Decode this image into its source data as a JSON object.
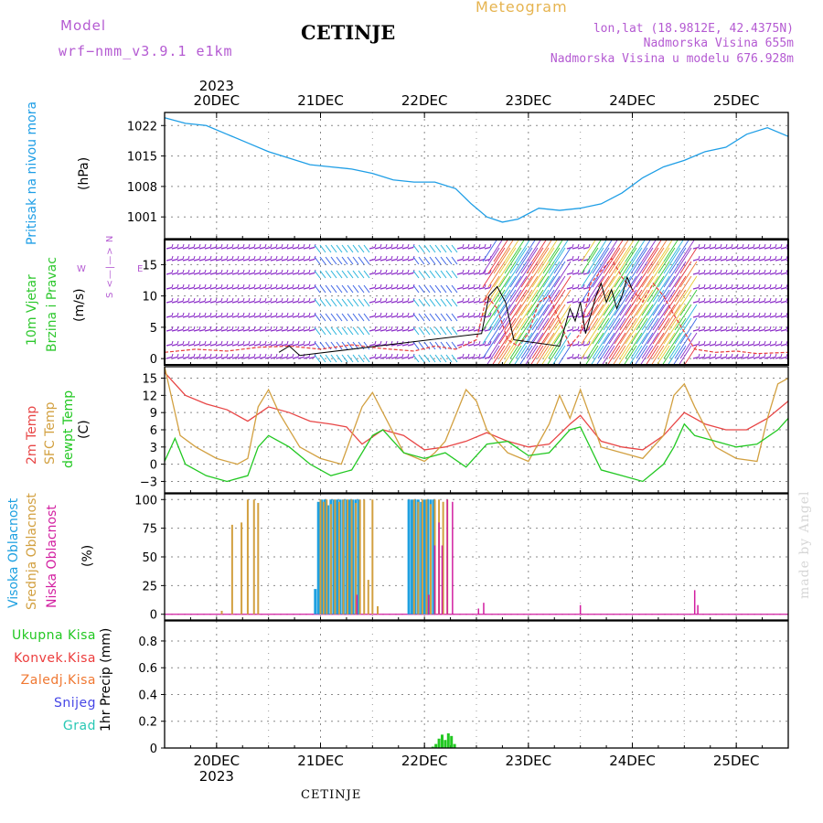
{
  "header": {
    "model_label": "Model",
    "model_name": "wrf−nmm_v3.9.1  e1km",
    "station_title": "CETINJE",
    "meteogram_label": "Meteogram",
    "lonlat": "lon,lat (18.9812E, 42.4375N)",
    "altitude": "Nadmorska Visina 655m",
    "model_altitude": "Nadmorska Visina u modelu 676.928m"
  },
  "footer": {
    "station": "CETINJE",
    "credit": "made by Angel"
  },
  "colors": {
    "pressure": "#1e9ee6",
    "wind_title": "#2ec82e",
    "wind_speed": "#e83c3c",
    "wind_gust": "#000000",
    "wind_barb": "#8c2ec8",
    "t2m": "#e84646",
    "tsfc": "#d2a040",
    "dewpt": "#22c822",
    "high_cloud": "#1ea0e0",
    "mid_cloud": "#d2a040",
    "low_cloud": "#d21ea0",
    "total_precip": "#22c822",
    "conv_precip": "#ec3c3c",
    "frozen_precip": "#f07832",
    "snow": "#4646e6",
    "graupel": "#28c8b4",
    "purple_text": "#b45ad2",
    "gold_text": "#e6b450"
  },
  "chart_data": [
    {
      "type": "line",
      "panel": "pressure",
      "ylabel": [
        "Pritisak na nivou mora",
        "(hPa)"
      ],
      "yticks": [
        1001,
        1008,
        1015,
        1022
      ],
      "ylim": [
        996,
        1025
      ],
      "x_ticks": [
        "20DEC",
        "21DEC",
        "22DEC",
        "23DEC",
        "24DEC",
        "25DEC"
      ],
      "x_year": "2023",
      "x_range_days": [
        -0.5,
        5.5
      ],
      "grid": true,
      "series": [
        {
          "x": [
            -0.5,
            -0.3,
            -0.1,
            0.1,
            0.3,
            0.5,
            0.7,
            0.9,
            1.1,
            1.3,
            1.5,
            1.7,
            1.9,
            2.1,
            2.3,
            2.45,
            2.6,
            2.75,
            2.9,
            3.1,
            3.3,
            3.5,
            3.7,
            3.9,
            4.1,
            4.3,
            4.5,
            4.7,
            4.9,
            5.1,
            5.3,
            5.5
          ],
          "y": [
            1023.8,
            1022.5,
            1022,
            1020,
            1018,
            1016,
            1014.5,
            1013,
            1012.5,
            1012,
            1011,
            1009.5,
            1009,
            1009,
            1007.5,
            1004,
            1001,
            999.8,
            1000.5,
            1003,
            1002.5,
            1003,
            1004,
            1006.5,
            1010,
            1012.5,
            1014,
            1016,
            1017,
            1020,
            1021.5,
            1019.5
          ]
        }
      ]
    },
    {
      "type": "line",
      "panel": "wind",
      "ylabel": [
        "10m Vjetar",
        "Brzina i Pravac",
        "(m/s)"
      ],
      "direction_legend": "N\n↑\n← — →\n↓\nS",
      "yticks": [
        0,
        5,
        10,
        15
      ],
      "ylim": [
        -1,
        19
      ],
      "grid": true,
      "series": [
        {
          "name": "speed",
          "x": [
            -0.5,
            -0.2,
            0.1,
            0.4,
            0.7,
            1.0,
            1.3,
            1.6,
            1.9,
            2.1,
            2.3,
            2.5,
            2.6,
            2.7,
            2.8,
            2.9,
            3.0,
            3.1,
            3.2,
            3.3,
            3.4,
            3.5,
            3.6,
            3.7,
            3.8,
            3.9,
            4.0,
            4.1,
            4.2,
            4.3,
            4.4,
            4.6,
            4.8,
            5.0,
            5.2,
            5.5
          ],
          "y": [
            1,
            1.5,
            1.2,
            1.8,
            2,
            1.5,
            2.2,
            1.6,
            1.2,
            2,
            1.5,
            3,
            10,
            8,
            3,
            2,
            4,
            9,
            10,
            6,
            2,
            4,
            12,
            14,
            16,
            13,
            11,
            9,
            12,
            10,
            7,
            1.5,
            1,
            1.2,
            0.8,
            1
          ]
        },
        {
          "name": "gust",
          "x": [
            0.6,
            0.7,
            0.8,
            2.55,
            2.62,
            2.7,
            2.78,
            2.86,
            3.3,
            3.35,
            3.4,
            3.45,
            3.5,
            3.55,
            3.6,
            3.65,
            3.7,
            3.75,
            3.8,
            3.85,
            3.9,
            3.95,
            4.0
          ],
          "y": [
            1,
            2,
            0.5,
            4,
            10,
            11.5,
            9,
            3,
            2,
            5,
            8,
            6,
            9,
            4,
            7,
            10,
            12,
            9,
            11,
            8,
            10,
            13,
            11
          ]
        }
      ]
    },
    {
      "type": "line",
      "panel": "temperature",
      "ylabel": [
        "2m Temp",
        "SFC Temp",
        "dewpt Temp",
        "(C)"
      ],
      "yticks": [
        -3,
        0,
        3,
        6,
        9,
        12,
        15
      ],
      "ylim": [
        -5,
        17
      ],
      "grid": true,
      "series": [
        {
          "name": "2m Temp",
          "x": [
            -0.5,
            -0.3,
            -0.1,
            0.1,
            0.3,
            0.5,
            0.7,
            0.9,
            1.1,
            1.25,
            1.4,
            1.6,
            1.8,
            2.0,
            2.2,
            2.4,
            2.6,
            2.8,
            3.0,
            3.2,
            3.4,
            3.5,
            3.7,
            3.9,
            4.1,
            4.3,
            4.5,
            4.7,
            4.9,
            5.1,
            5.3,
            5.5
          ],
          "y": [
            16,
            12,
            10.5,
            9.5,
            7.5,
            10,
            9,
            7.5,
            7,
            6.5,
            3.5,
            6,
            5,
            2.5,
            3,
            4,
            5.5,
            4,
            3,
            3.5,
            7,
            8.5,
            4,
            3,
            2.5,
            5,
            9,
            7,
            6,
            6,
            8,
            11
          ]
        },
        {
          "name": "SFC Temp",
          "x": [
            -0.5,
            -0.35,
            -0.2,
            0.0,
            0.2,
            0.3,
            0.4,
            0.5,
            0.6,
            0.8,
            1.0,
            1.2,
            1.4,
            1.5,
            1.6,
            1.8,
            2.0,
            2.1,
            2.2,
            2.4,
            2.5,
            2.6,
            2.8,
            3.0,
            3.2,
            3.3,
            3.4,
            3.5,
            3.7,
            3.9,
            4.1,
            4.3,
            4.4,
            4.5,
            4.6,
            4.8,
            5.0,
            5.2,
            5.3,
            5.4,
            5.5
          ],
          "y": [
            17,
            5,
            3,
            1,
            0,
            1,
            10,
            13,
            9,
            3,
            1,
            0,
            10,
            12.5,
            9,
            2,
            0.5,
            2,
            4,
            13,
            11,
            6,
            2,
            0.5,
            7,
            12,
            8,
            13,
            3,
            2,
            1,
            5,
            12,
            14,
            10,
            3,
            1,
            0.5,
            8,
            14,
            15
          ]
        },
        {
          "name": "dewpt Temp",
          "x": [
            -0.5,
            -0.4,
            -0.3,
            -0.1,
            0.1,
            0.3,
            0.4,
            0.5,
            0.7,
            0.9,
            1.1,
            1.3,
            1.5,
            1.6,
            1.8,
            2.0,
            2.2,
            2.4,
            2.6,
            2.8,
            3.0,
            3.2,
            3.4,
            3.5,
            3.7,
            3.9,
            4.1,
            4.3,
            4.4,
            4.5,
            4.6,
            4.8,
            5.0,
            5.2,
            5.4,
            5.5
          ],
          "y": [
            0.5,
            4.5,
            0,
            -2,
            -3,
            -2,
            3,
            5,
            3,
            0,
            -2,
            -1,
            5,
            6,
            2,
            1,
            2,
            -0.5,
            3.5,
            4,
            1.5,
            2,
            6,
            6.5,
            -1,
            -2,
            -3,
            0,
            3,
            7,
            5,
            4,
            3,
            3.5,
            6,
            8
          ]
        }
      ]
    },
    {
      "type": "bar",
      "panel": "cloud",
      "ylabel": [
        "Visoka Oblacnost",
        "Srednja Oblacnost",
        "Niska Oblacnost",
        "(%)"
      ],
      "yticks": [
        0,
        25,
        50,
        75,
        100
      ],
      "ylim": [
        -5,
        105
      ],
      "grid": true,
      "series": [
        {
          "name": "Visoka Oblacnost",
          "x": [
            0.95,
            0.98,
            1.01,
            1.04,
            1.07,
            1.1,
            1.13,
            1.16,
            1.19,
            1.22,
            1.25,
            1.28,
            1.31,
            1.34,
            1.37,
            1.85,
            1.88,
            1.91,
            1.94,
            1.97,
            2.0,
            2.03,
            2.06,
            2.09
          ],
          "y": [
            22,
            98,
            100,
            100,
            95,
            100,
            100,
            100,
            100,
            100,
            100,
            100,
            100,
            100,
            100,
            100,
            100,
            100,
            100,
            98,
            100,
            100,
            100,
            100
          ]
        },
        {
          "name": "Srednja Oblacnost",
          "x": [
            0.05,
            0.15,
            0.24,
            0.3,
            0.36,
            0.4,
            1.0,
            1.03,
            1.06,
            1.1,
            1.14,
            1.18,
            1.22,
            1.26,
            1.3,
            1.34,
            1.38,
            1.42,
            1.46,
            1.5,
            1.55,
            1.9,
            1.94,
            1.98,
            2.02,
            2.06,
            2.1,
            2.14,
            2.18,
            2.22
          ],
          "y": [
            3,
            78,
            80,
            100,
            100,
            97,
            100,
            98,
            100,
            96,
            100,
            98,
            100,
            100,
            100,
            97,
            100,
            100,
            30,
            100,
            7,
            100,
            98,
            100,
            100,
            96,
            100,
            100,
            98,
            100
          ]
        },
        {
          "name": "Niska Oblacnost",
          "x": [
            1.35,
            2.04,
            2.1,
            2.14,
            2.17,
            2.22,
            2.27,
            2.52,
            2.57,
            3.5,
            4.6,
            4.63
          ],
          "y": [
            17,
            17,
            60,
            80,
            60,
            100,
            98,
            5,
            10,
            8,
            21,
            8
          ]
        }
      ]
    },
    {
      "type": "bar",
      "panel": "precip",
      "ylabel": [
        "1hr Precip (mm)"
      ],
      "legend": [
        "Ukupna Kisa",
        "Konvek.Kisa",
        "Zaledj.Kisa",
        "Snijeg",
        "Grad"
      ],
      "yticks": [
        0,
        0.2,
        0.4,
        0.6,
        0.8
      ],
      "ylim": [
        0,
        0.95
      ],
      "grid": true,
      "series": [
        {
          "name": "Ukupna Kisa",
          "x": [
            2.08,
            2.11,
            2.14,
            2.17,
            2.2,
            2.23,
            2.26,
            2.29
          ],
          "y": [
            0.01,
            0.03,
            0.07,
            0.1,
            0.06,
            0.11,
            0.09,
            0.03
          ]
        }
      ]
    }
  ]
}
